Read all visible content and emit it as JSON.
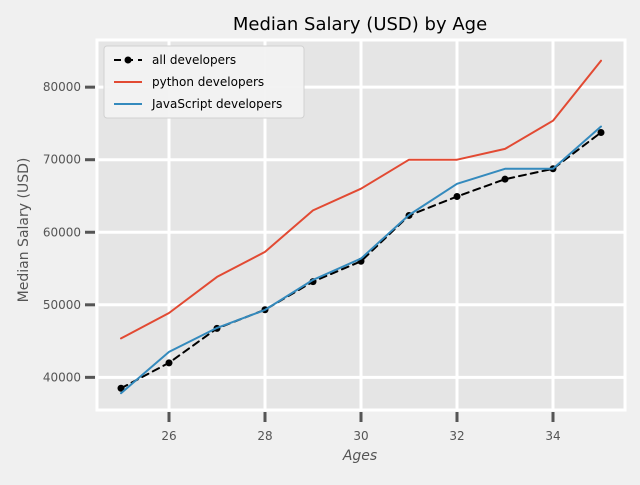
{
  "chart_data": {
    "type": "line",
    "title": "Median Salary (USD) by Age",
    "xlabel": "Ages",
    "ylabel": "Median Salary (USD)",
    "xlim": [
      24.5,
      35.5
    ],
    "ylim": [
      35500,
      86500
    ],
    "x_ticks": [
      26,
      28,
      30,
      32,
      34
    ],
    "y_ticks": [
      40000,
      50000,
      60000,
      70000,
      80000
    ],
    "grid": true,
    "legend_position": "top-left",
    "x": [
      25,
      26,
      27,
      28,
      29,
      30,
      31,
      32,
      33,
      34,
      35
    ],
    "series": [
      {
        "name": "all developers",
        "values": [
          38496,
          42000,
          46752,
          49320,
          53200,
          56000,
          62316,
          64928,
          67317,
          68748,
          73752
        ],
        "color": "#000000",
        "style": "dashed",
        "marker": "circle"
      },
      {
        "name": "python developers",
        "values": [
          45372,
          48876,
          53850,
          57287,
          63016,
          65998,
          70003,
          70000,
          71496,
          75370,
          83640
        ],
        "color": "#e24a33",
        "style": "solid"
      },
      {
        "name": "JavaScript developers",
        "values": [
          37810,
          43515,
          46823,
          49293,
          53437,
          56373,
          62375,
          66674,
          68745,
          68746,
          74583
        ],
        "color": "#348abd",
        "style": "solid"
      }
    ]
  }
}
